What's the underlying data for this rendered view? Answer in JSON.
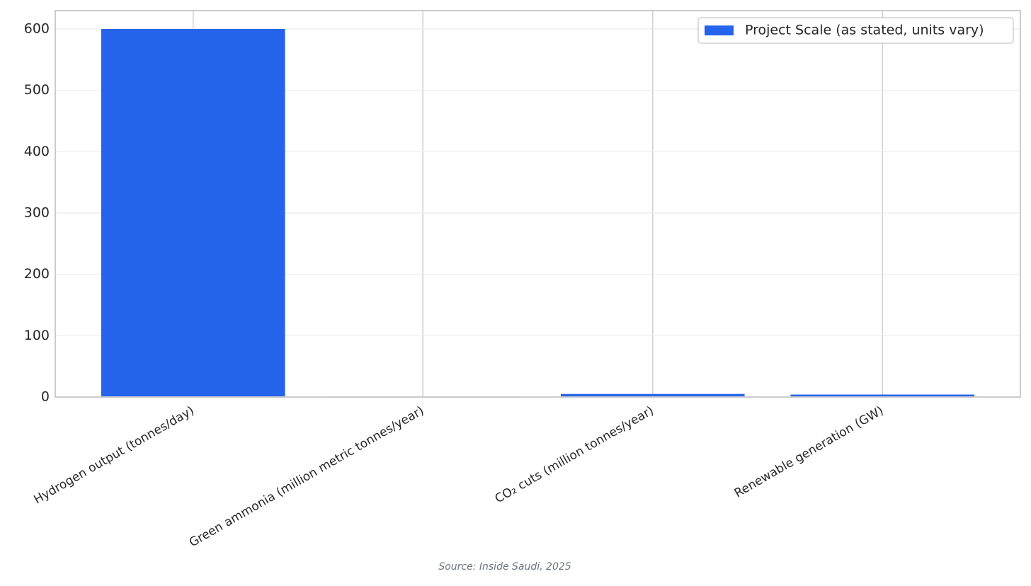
{
  "chart_data": {
    "type": "bar",
    "categories": [
      "Hydrogen output (tonnes/day)",
      "Green ammonia (million metric tonnes/year)",
      "CO₂ cuts (million tonnes/year)",
      "Renewable generation (GW)"
    ],
    "series": [
      {
        "name": "Project Scale (as stated, units vary)",
        "color": "#2563eb",
        "values": [
          600,
          1.2,
          5,
          4
        ]
      }
    ],
    "ylim": [
      0,
      630
    ],
    "yticks": [
      0,
      100,
      200,
      300,
      400,
      500,
      600
    ],
    "grid": true,
    "legend": "upper right",
    "source": "Source: Inside Saudi, 2025"
  }
}
